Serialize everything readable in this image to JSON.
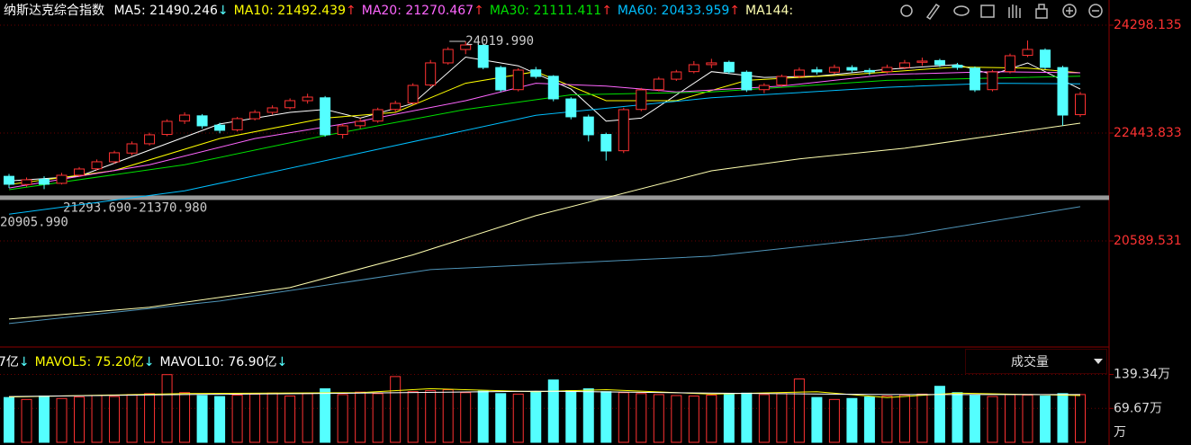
{
  "chart_data": [
    {
      "type": "candlestick",
      "title": "纳斯达克综合指数",
      "up_color": "#ff3232",
      "down_color": "#54ffff",
      "ylim": [
        18766,
        24731
      ],
      "yticks": [
        24298.135,
        22443.833,
        20589.531
      ],
      "grid": true,
      "ohlc": [
        [
          21700,
          21740,
          21500,
          21564
        ],
        [
          21560,
          21680,
          21520,
          21641
        ],
        [
          21650,
          21700,
          21480,
          21564
        ],
        [
          21580,
          21760,
          21560,
          21718
        ],
        [
          21720,
          21860,
          21690,
          21826
        ],
        [
          21830,
          21990,
          21800,
          21950
        ],
        [
          21950,
          22140,
          21920,
          22105
        ],
        [
          22100,
          22300,
          22060,
          22259
        ],
        [
          22260,
          22450,
          22230,
          22414
        ],
        [
          22420,
          22680,
          22390,
          22645
        ],
        [
          22650,
          22800,
          22600,
          22753
        ],
        [
          22740,
          22770,
          22520,
          22568
        ],
        [
          22580,
          22620,
          22440,
          22491
        ],
        [
          22500,
          22720,
          22470,
          22692
        ],
        [
          22690,
          22840,
          22660,
          22800
        ],
        [
          22800,
          22920,
          22760,
          22877
        ],
        [
          22880,
          23040,
          22850,
          23001
        ],
        [
          23000,
          23120,
          22950,
          23062
        ],
        [
          23050,
          23080,
          22380,
          22414
        ],
        [
          22420,
          22600,
          22350,
          22568
        ],
        [
          22570,
          22700,
          22520,
          22645
        ],
        [
          22650,
          22880,
          22620,
          22846
        ],
        [
          22850,
          23000,
          22800,
          22954
        ],
        [
          22960,
          23300,
          22930,
          23263
        ],
        [
          23270,
          23700,
          23240,
          23650
        ],
        [
          23650,
          23920,
          23620,
          23881
        ],
        [
          23880,
          24019.99,
          23800,
          23958
        ],
        [
          23950,
          23980,
          23540,
          23572
        ],
        [
          23570,
          23600,
          23150,
          23186
        ],
        [
          23190,
          23560,
          23160,
          23526
        ],
        [
          23530,
          23580,
          23380,
          23417
        ],
        [
          23420,
          23440,
          22990,
          23032
        ],
        [
          23030,
          23060,
          22680,
          22723
        ],
        [
          22720,
          22760,
          22300,
          22414
        ],
        [
          22420,
          22450,
          21970,
          22135
        ],
        [
          22140,
          22880,
          22100,
          22846
        ],
        [
          22850,
          23220,
          22820,
          23186
        ],
        [
          23190,
          23410,
          23160,
          23371
        ],
        [
          23370,
          23530,
          23340,
          23495
        ],
        [
          23500,
          23680,
          23470,
          23619
        ],
        [
          23620,
          23720,
          23560,
          23650
        ],
        [
          23660,
          23690,
          23460,
          23495
        ],
        [
          23490,
          23520,
          23150,
          23186
        ],
        [
          23190,
          23300,
          23130,
          23263
        ],
        [
          23270,
          23450,
          23240,
          23417
        ],
        [
          23420,
          23570,
          23390,
          23526
        ],
        [
          23530,
          23580,
          23450,
          23495
        ],
        [
          23490,
          23620,
          23460,
          23572
        ],
        [
          23570,
          23610,
          23480,
          23526
        ],
        [
          23520,
          23560,
          23440,
          23495
        ],
        [
          23500,
          23620,
          23470,
          23572
        ],
        [
          23570,
          23700,
          23540,
          23650
        ],
        [
          23660,
          23740,
          23600,
          23681
        ],
        [
          23690,
          23720,
          23580,
          23619
        ],
        [
          23610,
          23650,
          23530,
          23572
        ],
        [
          23560,
          23590,
          23150,
          23186
        ],
        [
          23190,
          23530,
          23160,
          23495
        ],
        [
          23500,
          23810,
          23470,
          23773
        ],
        [
          23780,
          24035,
          23750,
          23881
        ],
        [
          23870,
          23900,
          23540,
          23572
        ],
        [
          23570,
          23600,
          22568,
          22753
        ],
        [
          22760,
          23150,
          22720,
          23110
        ]
      ],
      "legend": [
        {
          "label": "MA5: 21490.246",
          "arrow": "↓",
          "color": "#ffffff",
          "arrow_color": "#54ffff"
        },
        {
          "label": "MA10: 21492.439",
          "arrow": "↑",
          "color": "#ffff00",
          "arrow_color": "#ff3232"
        },
        {
          "label": "MA20: 21270.467",
          "arrow": "↑",
          "color": "#ff66ff",
          "arrow_color": "#ff3232"
        },
        {
          "label": "MA30: 21111.411",
          "arrow": "↑",
          "color": "#00e000",
          "arrow_color": "#ff3232"
        },
        {
          "label": "MA60: 20433.959",
          "arrow": "↑",
          "color": "#00bfff",
          "arrow_color": "#ff3232"
        },
        {
          "label": "MA144:",
          "arrow": "",
          "color": "#ffffb0",
          "arrow_color": "#ff3232"
        }
      ],
      "lines": [
        {
          "color": "#ffffff",
          "x": [
            0,
            4,
            8,
            12,
            16,
            18,
            20,
            23,
            26,
            29,
            32,
            34,
            36,
            40,
            43,
            46,
            50,
            54,
            56,
            58,
            61
          ],
          "values": [
            21620,
            21700,
            22150,
            22600,
            22800,
            22850,
            22700,
            22950,
            23750,
            23600,
            23200,
            22650,
            22700,
            23500,
            23400,
            23420,
            23540,
            23620,
            23450,
            23650,
            23200
          ]
        },
        {
          "color": "#ffff00",
          "x": [
            0,
            6,
            12,
            18,
            22,
            26,
            30,
            34,
            38,
            42,
            48,
            54,
            58,
            61
          ],
          "values": [
            21560,
            21800,
            22350,
            22700,
            22800,
            23300,
            23500,
            23000,
            23000,
            23350,
            23450,
            23580,
            23560,
            23480
          ]
        },
        {
          "color": "#ff66ff",
          "x": [
            0,
            8,
            14,
            20,
            26,
            30,
            34,
            38,
            44,
            50,
            56,
            61
          ],
          "values": [
            21500,
            21900,
            22350,
            22650,
            23000,
            23300,
            23250,
            23150,
            23250,
            23450,
            23500,
            23480
          ]
        },
        {
          "color": "#00e000",
          "x": [
            0,
            10,
            18,
            26,
            32,
            40,
            50,
            61
          ],
          "values": [
            21470,
            21900,
            22400,
            22850,
            23100,
            23150,
            23350,
            23420
          ]
        },
        {
          "color": "#00bfff",
          "x": [
            0,
            10,
            20,
            30,
            40,
            50,
            56,
            61
          ],
          "values": [
            21050,
            21450,
            22100,
            22750,
            23050,
            23230,
            23300,
            23290
          ]
        },
        {
          "color": "#ffffb0",
          "x": [
            0,
            8,
            16,
            23,
            30,
            40,
            45,
            51,
            61
          ],
          "values": [
            19246,
            19450,
            19787,
            20350,
            21023,
            21795,
            22000,
            22182,
            22614
          ]
        },
        {
          "color": "#4f94b8",
          "x": [
            0,
            12,
            24,
            40,
            51,
            61
          ],
          "values": [
            19169,
            19555,
            20096,
            20328,
            20683,
            21178
          ]
        }
      ],
      "annotations": {
        "high": {
          "index": 26,
          "value": 24019.99,
          "label": "24019.990"
        },
        "low": {
          "value": 20905.99,
          "label": "20905.990"
        },
        "band": {
          "values": [
            21293.69,
            21370.98
          ],
          "label": "21293.690-21370.980"
        }
      }
    },
    {
      "type": "bar",
      "title": "成交量",
      "ylim": [
        0,
        192
      ],
      "yticks": [
        {
          "value": 139.34,
          "label": "139.34万"
        },
        {
          "value": 69.67,
          "label": "69.67万"
        }
      ],
      "unit": "万",
      "legend": [
        {
          "label": "7亿",
          "arrow": "↓",
          "color": "#ffffff",
          "arrow_color": "#54ffff"
        },
        {
          "label": "MAVOL5: 75.20亿",
          "arrow": "↓",
          "color": "#ffff00",
          "arrow_color": "#54ffff"
        },
        {
          "label": "MAVOL10: 76.90亿",
          "arrow": "↓",
          "color": "#ffffff",
          "arrow_color": "#54ffff"
        }
      ],
      "values": [
        92,
        88,
        95,
        90,
        93,
        96,
        94,
        98,
        100,
        139,
        102,
        96,
        94,
        97,
        99,
        101,
        95,
        100,
        110,
        98,
        103,
        100,
        135,
        104,
        106,
        108,
        102,
        105,
        100,
        99,
        103,
        128,
        106,
        110,
        104,
        102,
        100,
        98,
        96,
        95,
        97,
        99,
        101,
        98,
        100,
        130,
        92,
        88,
        90,
        93,
        95,
        97,
        99,
        115,
        102,
        96,
        94,
        98,
        97,
        95,
        100,
        98
      ],
      "lines": [
        {
          "color": "#ffff00",
          "x": [
            0,
            10,
            20,
            24,
            30,
            34,
            40,
            46,
            50,
            54,
            60,
            61
          ],
          "values": [
            93,
            100,
            102,
            110,
            104,
            108,
            99,
            104,
            92,
            101,
            97,
            96
          ]
        },
        {
          "color": "#ffffff",
          "x": [
            0,
            10,
            20,
            30,
            40,
            50,
            61
          ],
          "values": [
            94,
            98,
            101,
            105,
            101,
            98,
            98
          ]
        }
      ]
    }
  ]
}
